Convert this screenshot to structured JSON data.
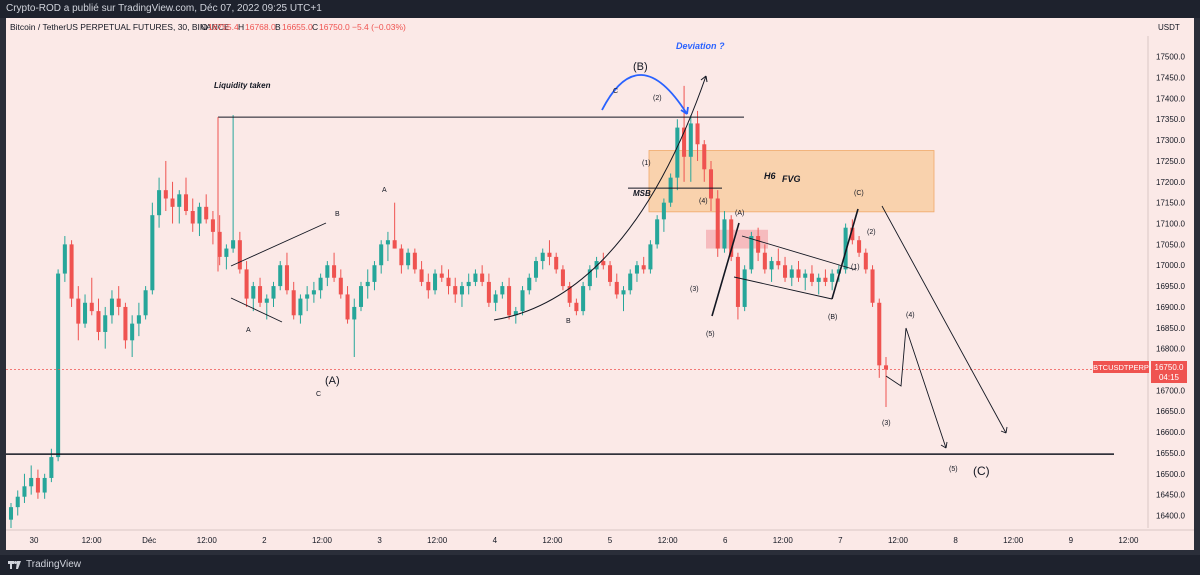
{
  "header": {
    "publisher_line": "Crypto-ROD a publié sur TradingView.com, Déc 07, 2022 09:25 UTC+1"
  },
  "footer": {
    "brand": "TradingView"
  },
  "chart_data": {
    "type": "candlestick",
    "symbol_line": "Bitcoin / TetherUS PERPETUAL FUTURES, 30, BINANCE",
    "ohlc": {
      "o_label": "O",
      "o": "16755.4",
      "h_label": "H",
      "h": "16768.0",
      "l_label": "B",
      "l": "16655.0",
      "c_label": "C",
      "c": "16750.0",
      "change": "−5.4 (−0.03%)"
    },
    "currency": "USDT",
    "price_ticks": [
      "17500.0",
      "17450.0",
      "17400.0",
      "17350.0",
      "17300.0",
      "17250.0",
      "17200.0",
      "17150.0",
      "17100.0",
      "17050.0",
      "17000.0",
      "16950.0",
      "16900.0",
      "16850.0",
      "16800.0",
      "16750.0",
      "16700.0",
      "16650.0",
      "16600.0",
      "16550.0",
      "16500.0",
      "16450.0",
      "16400.0"
    ],
    "time_ticks": [
      "30",
      "12:00",
      "Déc",
      "12:00",
      "2",
      "12:00",
      "3",
      "12:00",
      "4",
      "12:00",
      "5",
      "12:00",
      "6",
      "12:00",
      "7",
      "12:00",
      "8",
      "12:00",
      "9",
      "12:00"
    ],
    "last_price_tag": {
      "symbol": "BTCUSDTPERP",
      "price": "16750.0",
      "countdown": "04:15"
    },
    "ylim": [
      16370,
      17540
    ],
    "levels": {
      "liquidity_line": 17355,
      "support_line": 16547,
      "msb_line": 17185
    },
    "zones": [
      {
        "name": "H6 FVG",
        "top": 17275,
        "bottom": 17128
      },
      {
        "name": "small-fvg",
        "top": 17085,
        "bottom": 17040
      }
    ],
    "candles": [
      [
        16390,
        16430,
        16370,
        16420
      ],
      [
        16420,
        16460,
        16400,
        16445
      ],
      [
        16445,
        16500,
        16430,
        16470
      ],
      [
        16470,
        16520,
        16450,
        16490
      ],
      [
        16490,
        16510,
        16440,
        16455
      ],
      [
        16455,
        16500,
        16440,
        16490
      ],
      [
        16490,
        16560,
        16480,
        16540
      ],
      [
        16540,
        16990,
        16530,
        16980
      ],
      [
        16980,
        17070,
        16960,
        17050
      ],
      [
        17050,
        17060,
        16900,
        16920
      ],
      [
        16920,
        16950,
        16820,
        16860
      ],
      [
        16860,
        16930,
        16850,
        16910
      ],
      [
        16910,
        16970,
        16880,
        16890
      ],
      [
        16890,
        16920,
        16820,
        16840
      ],
      [
        16840,
        16900,
        16800,
        16880
      ],
      [
        16880,
        16940,
        16860,
        16920
      ],
      [
        16920,
        16950,
        16880,
        16900
      ],
      [
        16900,
        16910,
        16800,
        16820
      ],
      [
        16820,
        16880,
        16780,
        16860
      ],
      [
        16860,
        16910,
        16830,
        16880
      ],
      [
        16880,
        16950,
        16870,
        16940
      ],
      [
        16940,
        17150,
        16930,
        17120
      ],
      [
        17120,
        17210,
        17090,
        17180
      ],
      [
        17180,
        17250,
        17130,
        17160
      ],
      [
        17160,
        17200,
        17100,
        17140
      ],
      [
        17140,
        17180,
        17100,
        17170
      ],
      [
        17170,
        17210,
        17120,
        17130
      ],
      [
        17130,
        17160,
        17080,
        17100
      ],
      [
        17100,
        17150,
        17070,
        17140
      ],
      [
        17140,
        17170,
        17100,
        17110
      ],
      [
        17110,
        17130,
        17050,
        17080
      ],
      [
        17080,
        17120,
        17000,
        17020
      ],
      [
        17020,
        17050,
        16990,
        17040
      ],
      [
        17040,
        17360,
        17030,
        17060
      ],
      [
        17060,
        17080,
        16980,
        16990
      ],
      [
        16990,
        17010,
        16900,
        16920
      ],
      [
        16920,
        16960,
        16890,
        16950
      ],
      [
        16950,
        16970,
        16900,
        16910
      ],
      [
        16910,
        16930,
        16870,
        16920
      ],
      [
        16920,
        16960,
        16900,
        16950
      ],
      [
        16950,
        17010,
        16940,
        17000
      ],
      [
        17000,
        17030,
        16930,
        16940
      ],
      [
        16940,
        16960,
        16870,
        16880
      ],
      [
        16880,
        16930,
        16860,
        16920
      ],
      [
        16920,
        16950,
        16890,
        16930
      ],
      [
        16930,
        16960,
        16910,
        16940
      ],
      [
        16940,
        16980,
        16920,
        16970
      ],
      [
        16970,
        17010,
        16950,
        17000
      ],
      [
        17000,
        17030,
        16960,
        16970
      ],
      [
        16970,
        16990,
        16920,
        16930
      ],
      [
        16930,
        16950,
        16860,
        16870
      ],
      [
        16870,
        16920,
        16780,
        16900
      ],
      [
        16900,
        16960,
        16890,
        16950
      ],
      [
        16950,
        16990,
        16920,
        16960
      ],
      [
        16960,
        17010,
        16940,
        17000
      ],
      [
        17000,
        17060,
        16980,
        17050
      ],
      [
        17050,
        17080,
        17010,
        17060
      ],
      [
        17060,
        17150,
        17040,
        17040
      ],
      [
        17040,
        17050,
        16980,
        17000
      ],
      [
        17000,
        17040,
        16990,
        17030
      ],
      [
        17030,
        17040,
        16980,
        16990
      ],
      [
        16990,
        17010,
        16950,
        16960
      ],
      [
        16960,
        16980,
        16920,
        16940
      ],
      [
        16940,
        16990,
        16930,
        16980
      ],
      [
        16980,
        17000,
        16960,
        16970
      ],
      [
        16970,
        16990,
        16930,
        16950
      ],
      [
        16950,
        16970,
        16910,
        16930
      ],
      [
        16930,
        16960,
        16900,
        16950
      ],
      [
        16950,
        16980,
        16930,
        16960
      ],
      [
        16960,
        16990,
        16950,
        16980
      ],
      [
        16980,
        17000,
        16950,
        16960
      ],
      [
        16960,
        16980,
        16900,
        16910
      ],
      [
        16910,
        16940,
        16890,
        16930
      ],
      [
        16930,
        16960,
        16920,
        16950
      ],
      [
        16950,
        16970,
        16870,
        16880
      ],
      [
        16880,
        16900,
        16860,
        16890
      ],
      [
        16890,
        16950,
        16880,
        16940
      ],
      [
        16940,
        16980,
        16930,
        16970
      ],
      [
        16970,
        17020,
        16960,
        17010
      ],
      [
        17010,
        17040,
        16990,
        17030
      ],
      [
        17030,
        17060,
        17000,
        17020
      ],
      [
        17020,
        17030,
        16980,
        16990
      ],
      [
        16990,
        17000,
        16940,
        16950
      ],
      [
        16950,
        16960,
        16900,
        16910
      ],
      [
        16910,
        16920,
        16880,
        16890
      ],
      [
        16890,
        16960,
        16880,
        16950
      ],
      [
        16950,
        17000,
        16940,
        16990
      ],
      [
        16990,
        17020,
        16970,
        17010
      ],
      [
        17010,
        17030,
        16990,
        17000
      ],
      [
        17000,
        17010,
        16950,
        16960
      ],
      [
        16960,
        16980,
        16920,
        16930
      ],
      [
        16930,
        16950,
        16890,
        16940
      ],
      [
        16940,
        16990,
        16930,
        16980
      ],
      [
        16980,
        17010,
        16960,
        17000
      ],
      [
        17000,
        17020,
        16980,
        16990
      ],
      [
        16990,
        17060,
        16980,
        17050
      ],
      [
        17050,
        17120,
        17040,
        17110
      ],
      [
        17110,
        17160,
        17080,
        17150
      ],
      [
        17150,
        17220,
        17140,
        17210
      ],
      [
        17210,
        17350,
        17180,
        17330
      ],
      [
        17330,
        17430,
        17200,
        17260
      ],
      [
        17260,
        17360,
        17200,
        17340
      ],
      [
        17340,
        17370,
        17250,
        17290
      ],
      [
        17290,
        17300,
        17200,
        17230
      ],
      [
        17230,
        17250,
        17130,
        17160
      ],
      [
        17160,
        17180,
        17020,
        17040
      ],
      [
        17040,
        17130,
        17030,
        17110
      ],
      [
        17110,
        17120,
        17010,
        17020
      ],
      [
        17020,
        17030,
        16870,
        16900
      ],
      [
        16900,
        17000,
        16890,
        16990
      ],
      [
        16990,
        17080,
        16980,
        17070
      ],
      [
        17070,
        17090,
        17010,
        17030
      ],
      [
        17030,
        17050,
        16980,
        16990
      ],
      [
        16990,
        17020,
        16960,
        17010
      ],
      [
        17010,
        17040,
        16990,
        17000
      ],
      [
        17000,
        17020,
        16960,
        16970
      ],
      [
        16970,
        17000,
        16950,
        16990
      ],
      [
        16990,
        17010,
        16960,
        16970
      ],
      [
        16970,
        16990,
        16940,
        16980
      ],
      [
        16980,
        17000,
        16950,
        16960
      ],
      [
        16960,
        16980,
        16930,
        16970
      ],
      [
        16970,
        16990,
        16950,
        16960
      ],
      [
        16960,
        16990,
        16940,
        16980
      ],
      [
        16980,
        17000,
        16960,
        16990
      ],
      [
        16990,
        17100,
        16980,
        17090
      ],
      [
        17090,
        17110,
        17050,
        17060
      ],
      [
        17060,
        17070,
        17020,
        17030
      ],
      [
        17030,
        17040,
        16980,
        16990
      ],
      [
        16990,
        17000,
        16900,
        16910
      ],
      [
        16910,
        16920,
        16730,
        16760
      ],
      [
        16760,
        16780,
        16660,
        16750
      ]
    ],
    "annotations": [
      "Liquidity taken",
      "Deviation ?",
      "(B)",
      "C",
      "(2)",
      "(1)",
      "MSB",
      "(4)",
      "H6",
      "FVG",
      "(C)",
      "(A)",
      "(2)",
      "(1)",
      "(3)",
      "(5)",
      "(B)",
      "(4)",
      "(3)",
      "(5)",
      "(C)",
      "(A)",
      "C",
      "A",
      "B",
      "A",
      "B",
      "B"
    ],
    "colors": {
      "up": "#26a69a",
      "down": "#ef5350",
      "bg": "#fbe9e7",
      "fvg": "#f8c99a",
      "arrow_blue": "#2962ff"
    }
  }
}
